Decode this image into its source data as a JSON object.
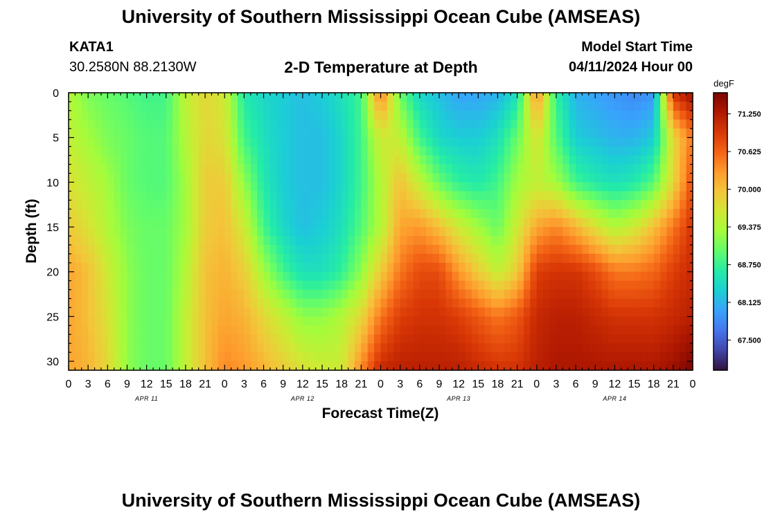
{
  "header": {
    "title": "University of Southern Mississippi Ocean Cube (AMSEAS)",
    "station_id": "KATA1",
    "station_coords": "30.2580N  88.2130W",
    "subtitle": "2-D Temperature at Depth",
    "model_start_label": "Model Start Time",
    "model_start_value": "04/11/2024 Hour 00"
  },
  "footer": {
    "title": "University of Southern Mississippi Ocean Cube (AMSEAS)"
  },
  "colors": {
    "colormap": [
      "#30123b",
      "#4145ab",
      "#4675ed",
      "#39a2fc",
      "#1bcfd4",
      "#24eca6",
      "#61fc6c",
      "#a4fc3b",
      "#d1e834",
      "#f3c63a",
      "#fe9b2d",
      "#f36315",
      "#d93806",
      "#b11901",
      "#7a0402"
    ]
  },
  "chart_data": {
    "type": "heatmap",
    "xlabel": "Forecast Time(Z)",
    "ylabel": "Depth (ft)",
    "colorbar_unit": "degF",
    "x_range_hours": [
      0,
      96
    ],
    "y_range_ft": [
      0,
      31
    ],
    "y_inverted": true,
    "value_range": [
      67.0,
      71.6
    ],
    "x_tick_labels": [
      "0",
      "3",
      "6",
      "9",
      "12",
      "15",
      "18",
      "21",
      "0",
      "3",
      "6",
      "9",
      "12",
      "15",
      "18",
      "21",
      "0",
      "3",
      "6",
      "9",
      "12",
      "15",
      "18",
      "21",
      "0",
      "3",
      "6",
      "9",
      "12",
      "15",
      "18",
      "21",
      "0"
    ],
    "day_labels": [
      {
        "label": "APR 11",
        "hour": 12
      },
      {
        "label": "APR 12",
        "hour": 36
      },
      {
        "label": "APR 13",
        "hour": 60
      },
      {
        "label": "APR 14",
        "hour": 84
      }
    ],
    "y_ticks": [
      0,
      5,
      10,
      15,
      20,
      25,
      30
    ],
    "colorbar_ticks": [
      "67.500",
      "68.125",
      "68.750",
      "69.375",
      "70.000",
      "70.625",
      "71.250"
    ],
    "depths_ft": [
      0,
      5,
      10,
      15,
      20,
      25,
      31
    ],
    "times_h": [
      0,
      3,
      6,
      9,
      12,
      15,
      18,
      21,
      24,
      27,
      30,
      33,
      36,
      39,
      42,
      45,
      48,
      51,
      54,
      57,
      60,
      63,
      66,
      69,
      72,
      75,
      78,
      81,
      84,
      87,
      90,
      93,
      96
    ],
    "temperature_degF": [
      [
        69.4,
        69.1,
        69.0,
        68.9,
        68.8,
        68.8,
        69.5,
        69.8,
        69.6,
        68.6,
        68.4,
        68.3,
        68.2,
        68.3,
        68.5,
        68.8,
        70.5,
        69.0,
        68.4,
        68.2,
        68.0,
        68.0,
        68.1,
        68.5,
        70.4,
        68.7,
        68.1,
        68.0,
        67.9,
        67.8,
        67.9,
        71.0,
        71.4
      ],
      [
        69.5,
        69.3,
        69.1,
        69.0,
        68.9,
        68.9,
        69.4,
        69.8,
        69.7,
        68.8,
        68.5,
        68.3,
        68.2,
        68.2,
        68.4,
        68.8,
        69.6,
        69.5,
        68.8,
        68.4,
        68.3,
        68.3,
        68.5,
        69.0,
        69.7,
        68.9,
        68.3,
        68.2,
        68.1,
        68.1,
        68.3,
        69.8,
        70.5
      ],
      [
        69.7,
        69.5,
        69.3,
        69.0,
        68.9,
        68.9,
        69.3,
        69.9,
        69.9,
        69.2,
        68.6,
        68.3,
        68.2,
        68.2,
        68.4,
        68.8,
        69.4,
        70.0,
        69.5,
        69.0,
        68.7,
        68.6,
        68.8,
        69.3,
        69.5,
        69.3,
        68.8,
        68.6,
        68.5,
        68.6,
        68.9,
        69.8,
        70.8
      ],
      [
        69.9,
        69.7,
        69.4,
        69.1,
        69.0,
        69.0,
        69.3,
        69.9,
        70.0,
        69.6,
        68.8,
        68.4,
        68.2,
        68.3,
        68.5,
        68.9,
        69.4,
        70.2,
        70.3,
        70.0,
        69.6,
        69.3,
        69.0,
        69.6,
        70.2,
        70.4,
        70.1,
        69.7,
        69.4,
        69.6,
        70.0,
        70.5,
        71.0
      ],
      [
        70.2,
        70.0,
        69.6,
        69.2,
        69.0,
        69.0,
        69.4,
        70.0,
        70.1,
        69.9,
        69.3,
        68.8,
        68.5,
        68.5,
        68.7,
        69.2,
        69.9,
        70.5,
        70.8,
        70.8,
        70.3,
        69.9,
        69.5,
        69.9,
        70.9,
        71.0,
        71.0,
        70.8,
        70.5,
        70.5,
        70.6,
        70.9,
        71.1
      ],
      [
        70.2,
        70.0,
        69.7,
        69.2,
        69.0,
        69.0,
        69.5,
        70.0,
        70.2,
        70.1,
        69.8,
        69.5,
        69.2,
        69.2,
        69.4,
        69.8,
        70.5,
        70.9,
        71.0,
        71.0,
        70.9,
        70.7,
        70.5,
        70.7,
        71.1,
        71.2,
        71.2,
        71.1,
        71.0,
        71.0,
        71.0,
        71.1,
        71.2
      ],
      [
        70.2,
        70.1,
        69.8,
        69.2,
        69.0,
        69.0,
        69.5,
        70.0,
        70.4,
        70.3,
        70.1,
        69.9,
        69.7,
        69.6,
        69.6,
        70.4,
        71.1,
        71.2,
        71.2,
        71.2,
        71.2,
        71.1,
        71.0,
        71.0,
        71.2,
        71.3,
        71.3,
        71.3,
        71.3,
        71.3,
        71.3,
        71.4,
        71.6
      ]
    ]
  }
}
